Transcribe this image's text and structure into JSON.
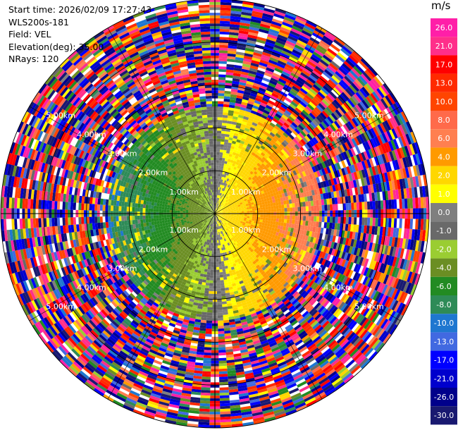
{
  "info": {
    "start_time": "Start time: 2026/02/09 17:27:43",
    "site": "WLS200s-181",
    "field": "Field: VEL",
    "elevation": "Elevation(deg): 35.00",
    "nrays": "NRays: 120"
  },
  "colorbar": {
    "unit": "m/s",
    "ticks": [
      "26.0",
      "21.0",
      "17.0",
      "13.0",
      "10.0",
      "8.0",
      "6.0",
      "4.0",
      "2.0",
      "1.0",
      "0.0",
      "-1.0",
      "-2.0",
      "-4.0",
      "-6.0",
      "-8.0",
      "-10.0",
      "-13.0",
      "-17.0",
      "-21.0",
      "-26.0",
      "-30.0"
    ],
    "colors": [
      "#ff1fa8",
      "#ff2f8a",
      "#ff0000",
      "#ff2a00",
      "#ff4500",
      "#ff6a4a",
      "#ff7f50",
      "#ff9a00",
      "#ffd700",
      "#ffff00",
      "#7f7f7f",
      "#696969",
      "#9acd32",
      "#6b8e23",
      "#228b22",
      "#2e8b57",
      "#1e77d0",
      "#4169e1",
      "#0000ff",
      "#0000cd",
      "#00008b",
      "#191970"
    ]
  },
  "chart_data": {
    "type": "heatmap",
    "title": "",
    "field": "VEL",
    "units": "m/s",
    "n_rays": 120,
    "elevation_deg": 35.0,
    "range_rings": [
      "1.00km",
      "2.00km",
      "3.00km",
      "4.00km",
      "5.00km"
    ],
    "max_range_km": 5.0,
    "color_levels": [
      -30.0,
      -26.0,
      -21.0,
      -17.0,
      -13.0,
      -10.0,
      -8.0,
      -6.0,
      -4.0,
      -2.0,
      -1.0,
      0.0,
      1.0,
      2.0,
      4.0,
      6.0,
      8.0,
      10.0,
      13.0,
      17.0,
      21.0,
      26.0
    ],
    "pattern_notes": {
      "inner_flow": "approaching (negative) to the west, receding (positive) to the east",
      "outer_region": "noise beyond ~2.5 km"
    }
  }
}
